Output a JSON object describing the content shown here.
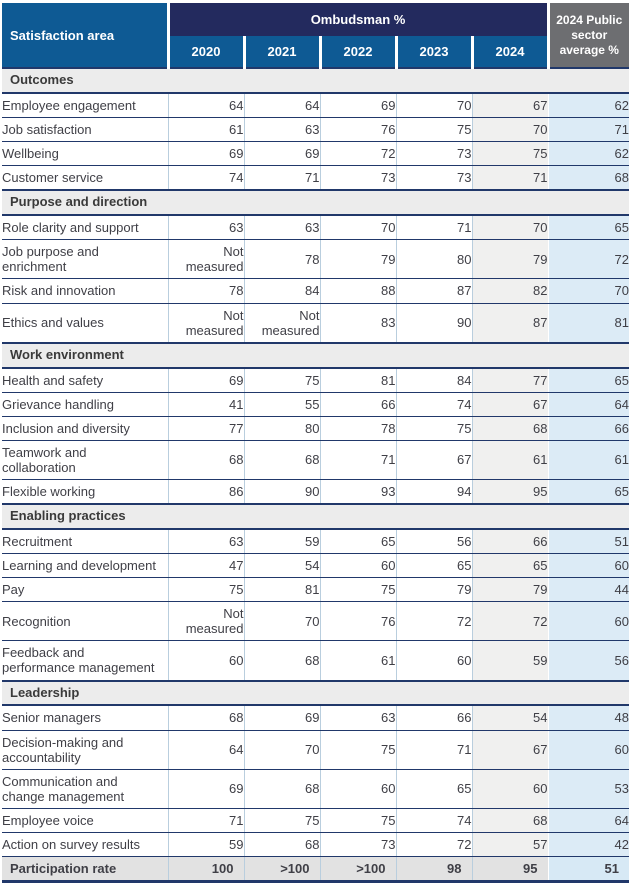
{
  "header": {
    "satisfaction_area": "Satisfaction area",
    "group": "Ombudsman %",
    "years": [
      "2020",
      "2021",
      "2022",
      "2023",
      "2024"
    ],
    "avg": "2024 Public sector average %"
  },
  "sections": [
    {
      "title": "Outcomes",
      "rows": [
        {
          "label": "Employee engagement",
          "values": [
            "64",
            "64",
            "69",
            "70",
            "67"
          ],
          "avg": "62"
        },
        {
          "label": "Job satisfaction",
          "values": [
            "61",
            "63",
            "76",
            "75",
            "70"
          ],
          "avg": "71"
        },
        {
          "label": "Wellbeing",
          "values": [
            "69",
            "69",
            "72",
            "73",
            "75"
          ],
          "avg": "62"
        },
        {
          "label": "Customer service",
          "values": [
            "74",
            "71",
            "73",
            "73",
            "71"
          ],
          "avg": "68"
        }
      ]
    },
    {
      "title": "Purpose and direction",
      "rows": [
        {
          "label": "Role clarity and support",
          "values": [
            "63",
            "63",
            "70",
            "71",
            "70"
          ],
          "avg": "65"
        },
        {
          "label": "Job purpose and\nenrichment",
          "values": [
            "Not measured",
            "78",
            "79",
            "80",
            "79"
          ],
          "avg": "72"
        },
        {
          "label": "Risk and innovation",
          "values": [
            "78",
            "84",
            "88",
            "87",
            "82"
          ],
          "avg": "70"
        },
        {
          "label": "Ethics and values",
          "values": [
            "Not measured",
            "Not measured",
            "83",
            "90",
            "87"
          ],
          "avg": "81"
        }
      ]
    },
    {
      "title": "Work environment",
      "rows": [
        {
          "label": "Health and safety",
          "values": [
            "69",
            "75",
            "81",
            "84",
            "77"
          ],
          "avg": "65"
        },
        {
          "label": "Grievance handling",
          "values": [
            "41",
            "55",
            "66",
            "74",
            "67"
          ],
          "avg": "64"
        },
        {
          "label": "Inclusion and diversity",
          "values": [
            "77",
            "80",
            "78",
            "75",
            "68"
          ],
          "avg": "66"
        },
        {
          "label": "Teamwork and\ncollaboration",
          "values": [
            "68",
            "68",
            "71",
            "67",
            "61"
          ],
          "avg": "61"
        },
        {
          "label": "Flexible working",
          "values": [
            "86",
            "90",
            "93",
            "94",
            "95"
          ],
          "avg": "65"
        }
      ]
    },
    {
      "title": "Enabling practices",
      "rows": [
        {
          "label": "Recruitment",
          "values": [
            "63",
            "59",
            "65",
            "56",
            "66"
          ],
          "avg": "51"
        },
        {
          "label": "Learning and development",
          "values": [
            "47",
            "54",
            "60",
            "65",
            "65"
          ],
          "avg": "60"
        },
        {
          "label": "Pay",
          "values": [
            "75",
            "81",
            "75",
            "79",
            "79"
          ],
          "avg": "44"
        },
        {
          "label": "Recognition",
          "values": [
            "Not measured",
            "70",
            "76",
            "72",
            "72"
          ],
          "avg": "60"
        },
        {
          "label": "Feedback and\nperformance management",
          "values": [
            "60",
            "68",
            "61",
            "60",
            "59"
          ],
          "avg": "56"
        }
      ]
    },
    {
      "title": "Leadership",
      "rows": [
        {
          "label": "Senior managers",
          "values": [
            "68",
            "69",
            "63",
            "66",
            "54"
          ],
          "avg": "48"
        },
        {
          "label": "Decision-making and\naccountability",
          "values": [
            "64",
            "70",
            "75",
            "71",
            "67"
          ],
          "avg": "60"
        },
        {
          "label": "Communication and\nchange management",
          "values": [
            "69",
            "68",
            "60",
            "65",
            "60"
          ],
          "avg": "53"
        },
        {
          "label": "Employee voice",
          "values": [
            "71",
            "75",
            "75",
            "74",
            "68"
          ],
          "avg": "64"
        },
        {
          "label": "Action on survey results",
          "values": [
            "59",
            "68",
            "73",
            "72",
            "57"
          ],
          "avg": "42"
        }
      ]
    }
  ],
  "footer": {
    "label": "Participation rate",
    "values": [
      "100",
      ">100",
      ">100",
      "98",
      "95"
    ],
    "avg": "51"
  },
  "colors": {
    "navy": "#232a5e",
    "blue": "#0e5a94",
    "gray_header": "#6d6e71",
    "section_bg": "#ececec",
    "col2024_bg": "#f0f0ef",
    "avg_bg": "#dcebf6",
    "footer_bg": "#e2e2e2",
    "footer_avg_bg": "#d7e9f5",
    "row_border": "#21386a",
    "col_border": "#b9cede"
  }
}
